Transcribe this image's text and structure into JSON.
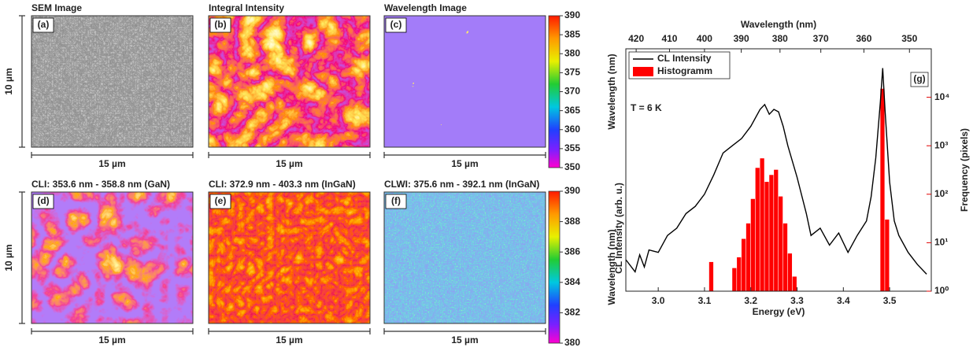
{
  "panels": [
    {
      "title": "SEM Image",
      "label": "(a)",
      "x_scale": "15 µm",
      "y_scale": "10 µm"
    },
    {
      "title": "Integral Intensity",
      "label": "(b)",
      "x_scale": "15 µm"
    },
    {
      "title": "Wavelength Image",
      "label": "(c)",
      "x_scale": "15 µm"
    },
    {
      "title": "CLI: 353.6 nm - 358.8 nm (GaN)",
      "label": "(d)",
      "x_scale": "15 µm",
      "y_scale": "10 µm"
    },
    {
      "title": "CLI: 372.9 nm - 403.3 nm (InGaN)",
      "label": "(e)",
      "x_scale": "15 µm"
    },
    {
      "title": "CLWI: 375.6 nm - 392.1 nm (InGaN)",
      "label": "(f)",
      "x_scale": "15 µm"
    }
  ],
  "chart_data": [
    {
      "type": "colorbar",
      "ylabel": "Wavelength (nm)",
      "ylim": [
        350,
        390
      ],
      "yticks": [
        350,
        355,
        360,
        365,
        370,
        375,
        380,
        385,
        390
      ]
    },
    {
      "type": "colorbar",
      "ylabel": "Wavelength (nm)",
      "ylim": [
        380,
        390
      ],
      "yticks": [
        380,
        382,
        384,
        386,
        388,
        390
      ]
    },
    {
      "type": "spectrum",
      "label": "(g)",
      "annotation": "T = 6 K",
      "xlabel": "Energy (eV)",
      "x2label": "Wavelength (nm)",
      "ylabel": "CL Intensity (arb. u.)",
      "y2label": "Frequency (pixels)",
      "xlim": [
        2.93,
        3.59
      ],
      "xticks": [
        {
          "value": 3,
          "label": "3.0"
        },
        3.1,
        3.2,
        3.3,
        3.4,
        3.5
      ],
      "x2lim": [
        423.2,
        345.4
      ],
      "x2ticks": [
        420,
        410,
        400,
        390,
        380,
        370,
        360,
        350
      ],
      "ylim": [
        0,
        1
      ],
      "y2lim": [
        1,
        100000
      ],
      "y2log": true,
      "y2ticks": [
        {
          "value": 1,
          "label": "10⁰"
        },
        {
          "value": 10,
          "label": "10¹"
        },
        {
          "value": 100,
          "label": "10²"
        },
        {
          "value": 1000,
          "label": "10³"
        },
        {
          "value": 10000,
          "label": "10⁴"
        }
      ],
      "y2color": "#e00000",
      "series": [
        {
          "name": "CL Intensity",
          "color": "#000000",
          "x": [
            2.93,
            2.95,
            2.96,
            2.97,
            2.98,
            3.0,
            3.02,
            3.04,
            3.06,
            3.08,
            3.1,
            3.12,
            3.14,
            3.16,
            3.18,
            3.2,
            3.22,
            3.23,
            3.24,
            3.25,
            3.26,
            3.27,
            3.28,
            3.3,
            3.32,
            3.33,
            3.35,
            3.37,
            3.39,
            3.41,
            3.43,
            3.45,
            3.46,
            3.47,
            3.48,
            3.485,
            3.49,
            3.5,
            3.51,
            3.52,
            3.54,
            3.56,
            3.58
          ],
          "values": [
            0.13,
            0.08,
            0.15,
            0.1,
            0.17,
            0.16,
            0.23,
            0.26,
            0.32,
            0.35,
            0.4,
            0.48,
            0.57,
            0.6,
            0.63,
            0.68,
            0.75,
            0.77,
            0.73,
            0.75,
            0.74,
            0.68,
            0.6,
            0.47,
            0.32,
            0.23,
            0.26,
            0.19,
            0.24,
            0.16,
            0.23,
            0.29,
            0.39,
            0.55,
            0.78,
            0.92,
            0.75,
            0.45,
            0.29,
            0.23,
            0.16,
            0.11,
            0.07
          ]
        },
        {
          "name": "Histogramm",
          "color": "#ff0000",
          "axis": "y2",
          "type": "histogram",
          "bins": [
            3.11,
            3.12,
            3.13,
            3.14,
            3.15,
            3.16,
            3.17,
            3.18,
            3.19,
            3.2,
            3.21,
            3.22,
            3.23,
            3.24,
            3.25,
            3.26,
            3.27,
            3.28,
            3.29,
            3.3,
            3.31,
            3.32,
            3.33,
            3.34,
            3.35,
            3.36,
            3.37,
            3.38,
            3.39,
            3.4,
            3.41,
            3.42,
            3.43,
            3.44,
            3.45,
            3.46,
            3.47,
            3.48,
            3.49,
            3.5
          ],
          "values": [
            4,
            0,
            0,
            0,
            0,
            3,
            5,
            12,
            25,
            80,
            350,
            550,
            180,
            250,
            320,
            90,
            25,
            6,
            2,
            0,
            0,
            0,
            0,
            0,
            0,
            0,
            0,
            0,
            0,
            0,
            0,
            0,
            0,
            0,
            0,
            0,
            0,
            15000,
            30
          ]
        }
      ]
    }
  ]
}
